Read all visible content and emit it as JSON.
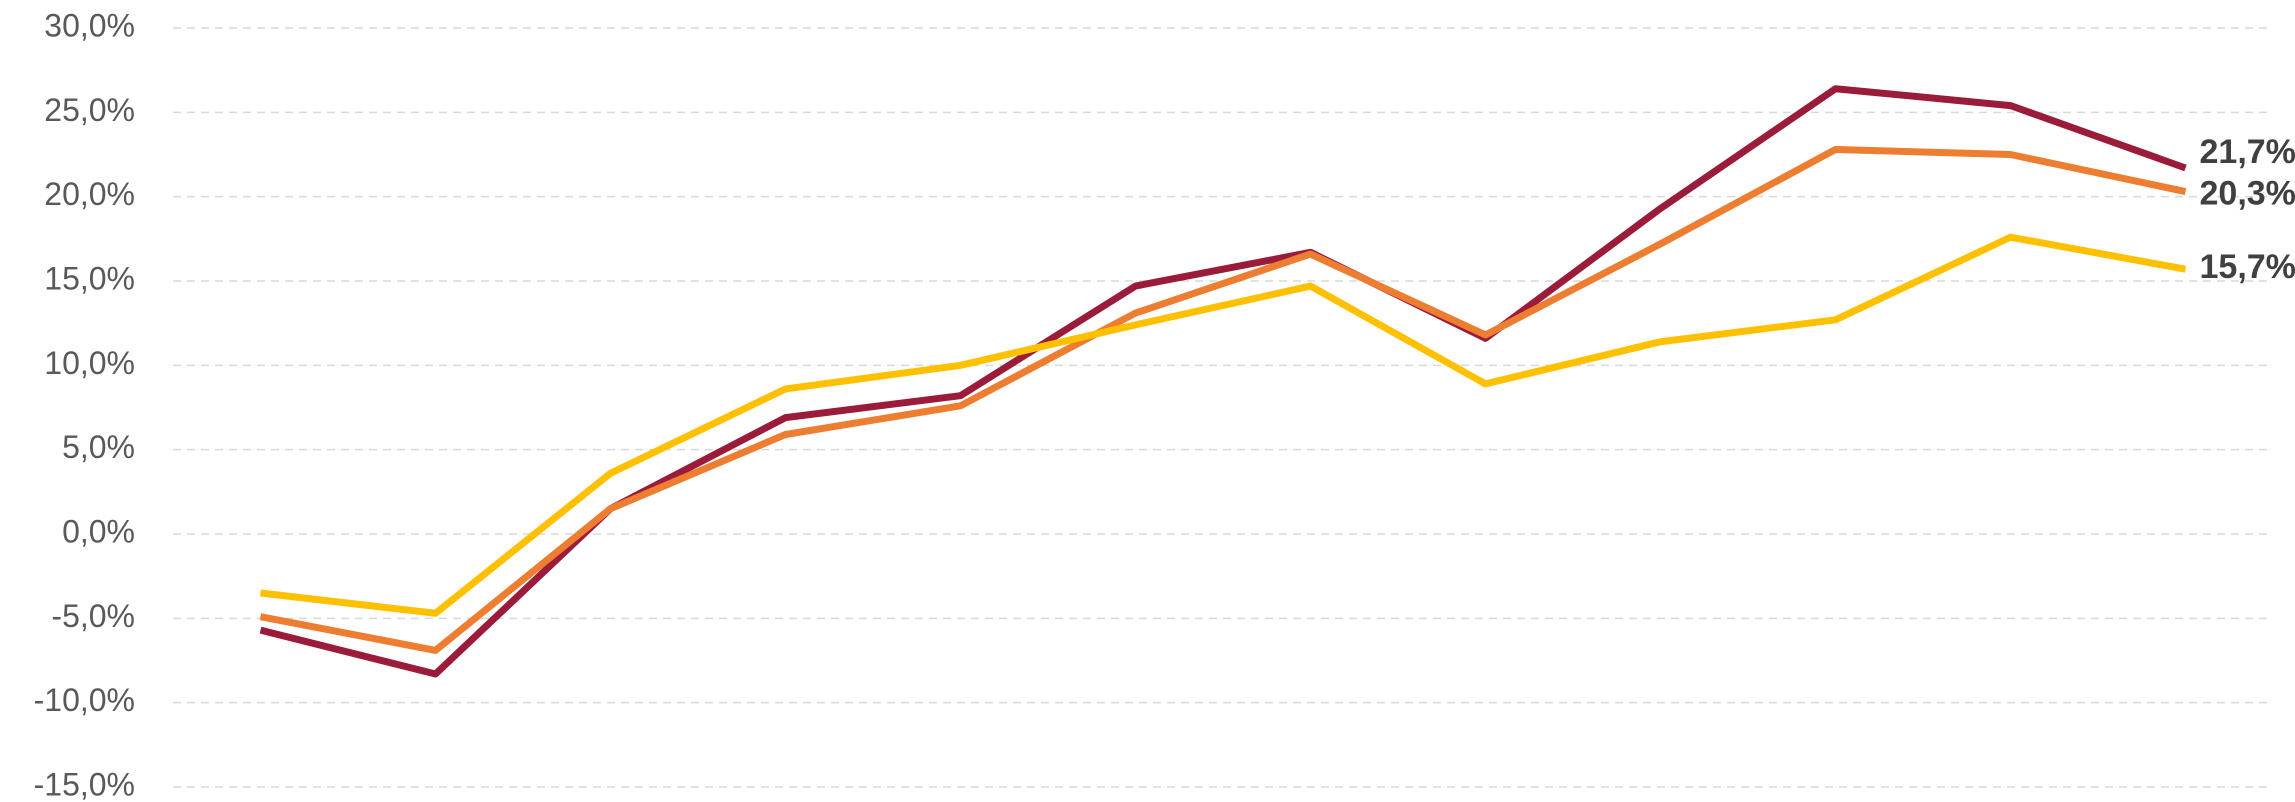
{
  "chart_data": {
    "type": "line",
    "categories": [
      null,
      null,
      null,
      null,
      null,
      null,
      null,
      null,
      null,
      null,
      null,
      null
    ],
    "series": [
      {
        "color": "#9b1b3a",
        "values": [
          -5.7,
          -8.3,
          1.5,
          6.9,
          8.2,
          14.7,
          16.7,
          11.6,
          19.3,
          26.4,
          25.4,
          21.7
        ],
        "value_labels": [
          null,
          null,
          null,
          null,
          null,
          null,
          null,
          null,
          null,
          null,
          null,
          "21,7%"
        ]
      },
      {
        "color": "#ed7d31",
        "values": [
          -4.9,
          -6.9,
          1.5,
          5.9,
          7.6,
          13.1,
          16.6,
          11.8,
          17.2,
          22.8,
          22.5,
          20.3
        ],
        "value_labels": [
          null,
          null,
          null,
          null,
          null,
          null,
          null,
          null,
          null,
          null,
          null,
          "20,3%"
        ]
      },
      {
        "color": "#ffc000",
        "values": [
          -3.5,
          -4.7,
          3.6,
          8.6,
          10.0,
          12.4,
          14.7,
          8.9,
          11.4,
          12.7,
          17.6,
          15.7
        ],
        "value_labels": [
          null,
          null,
          null,
          null,
          null,
          null,
          null,
          null,
          null,
          null,
          null,
          "15,7%"
        ]
      }
    ],
    "ylim": [
      -15,
      30
    ],
    "yticks": [
      {
        "value": -15,
        "label": "-15,0%"
      },
      {
        "value": -10,
        "label": "-10,0%"
      },
      {
        "value": -5,
        "label": "-5,0%"
      },
      {
        "value": 0,
        "label": "0,0%"
      },
      {
        "value": 5,
        "label": "5,0%"
      },
      {
        "value": 10,
        "label": "10,0%"
      },
      {
        "value": 15,
        "label": "15,0%"
      },
      {
        "value": 20,
        "label": "20,0%"
      },
      {
        "value": 25,
        "label": "25,0%"
      },
      {
        "value": 30,
        "label": "30,0%"
      }
    ],
    "grid": true
  }
}
